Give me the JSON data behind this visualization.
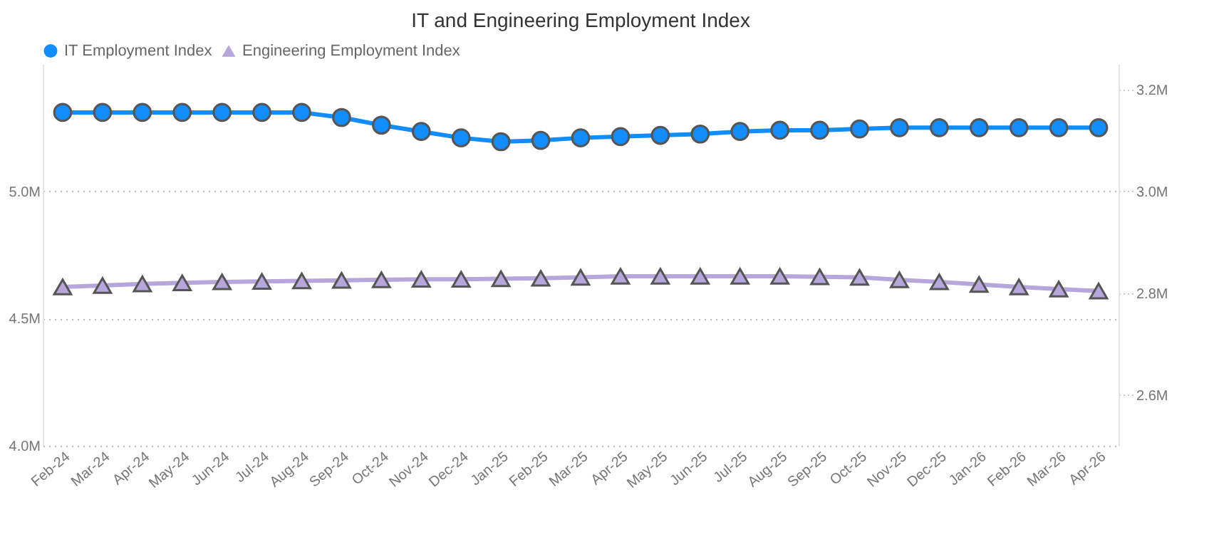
{
  "chart_data": {
    "type": "line",
    "title": "IT and Engineering Employment Index",
    "categories": [
      "Feb-24",
      "Mar-24",
      "Apr-24",
      "May-24",
      "Jun-24",
      "Jul-24",
      "Aug-24",
      "Sep-24",
      "Oct-24",
      "Nov-24",
      "Dec-24",
      "Jan-25",
      "Feb-25",
      "Mar-25",
      "Apr-25",
      "May-25",
      "Jun-25",
      "Jul-25",
      "Aug-25",
      "Sep-25",
      "Oct-25",
      "Nov-25",
      "Dec-25",
      "Jan-26",
      "Feb-26",
      "Mar-26",
      "Apr-26"
    ],
    "series": [
      {
        "name": "IT Employment Index",
        "color": "#118dff",
        "marker": "circle",
        "values": [
          5.31,
          5.31,
          5.31,
          5.31,
          5.31,
          5.31,
          5.31,
          5.29,
          5.26,
          5.235,
          5.21,
          5.195,
          5.2,
          5.21,
          5.215,
          5.22,
          5.225,
          5.235,
          5.24,
          5.24,
          5.245,
          5.25,
          5.25,
          5.25,
          5.25,
          5.25,
          5.25
        ]
      },
      {
        "name": "Engineering Employment Index",
        "color": "#b7a6dc",
        "marker": "triangle",
        "axis": "y2",
        "values": [
          2.812,
          2.815,
          2.818,
          2.82,
          2.822,
          2.823,
          2.824,
          2.825,
          2.826,
          2.827,
          2.827,
          2.828,
          2.829,
          2.831,
          2.833,
          2.833,
          2.833,
          2.833,
          2.833,
          2.832,
          2.831,
          2.826,
          2.822,
          2.817,
          2.812,
          2.808,
          2.804
        ]
      }
    ],
    "ylim": [
      4.0,
      5.5
    ],
    "yticks": [
      {
        "value": 4.0,
        "label": "4.0M"
      },
      {
        "value": 4.5,
        "label": "4.5M"
      },
      {
        "value": 5.0,
        "label": "5.0M"
      }
    ],
    "y2lim": [
      2.5,
      3.25
    ],
    "y2ticks": [
      {
        "value": 2.6,
        "label": "2.6M"
      },
      {
        "value": 2.8,
        "label": "2.8M"
      },
      {
        "value": 3.0,
        "label": "3.0M"
      },
      {
        "value": 3.2,
        "label": "3.2M"
      }
    ],
    "grid": "y",
    "legend": "top left",
    "line_style": "solid"
  }
}
